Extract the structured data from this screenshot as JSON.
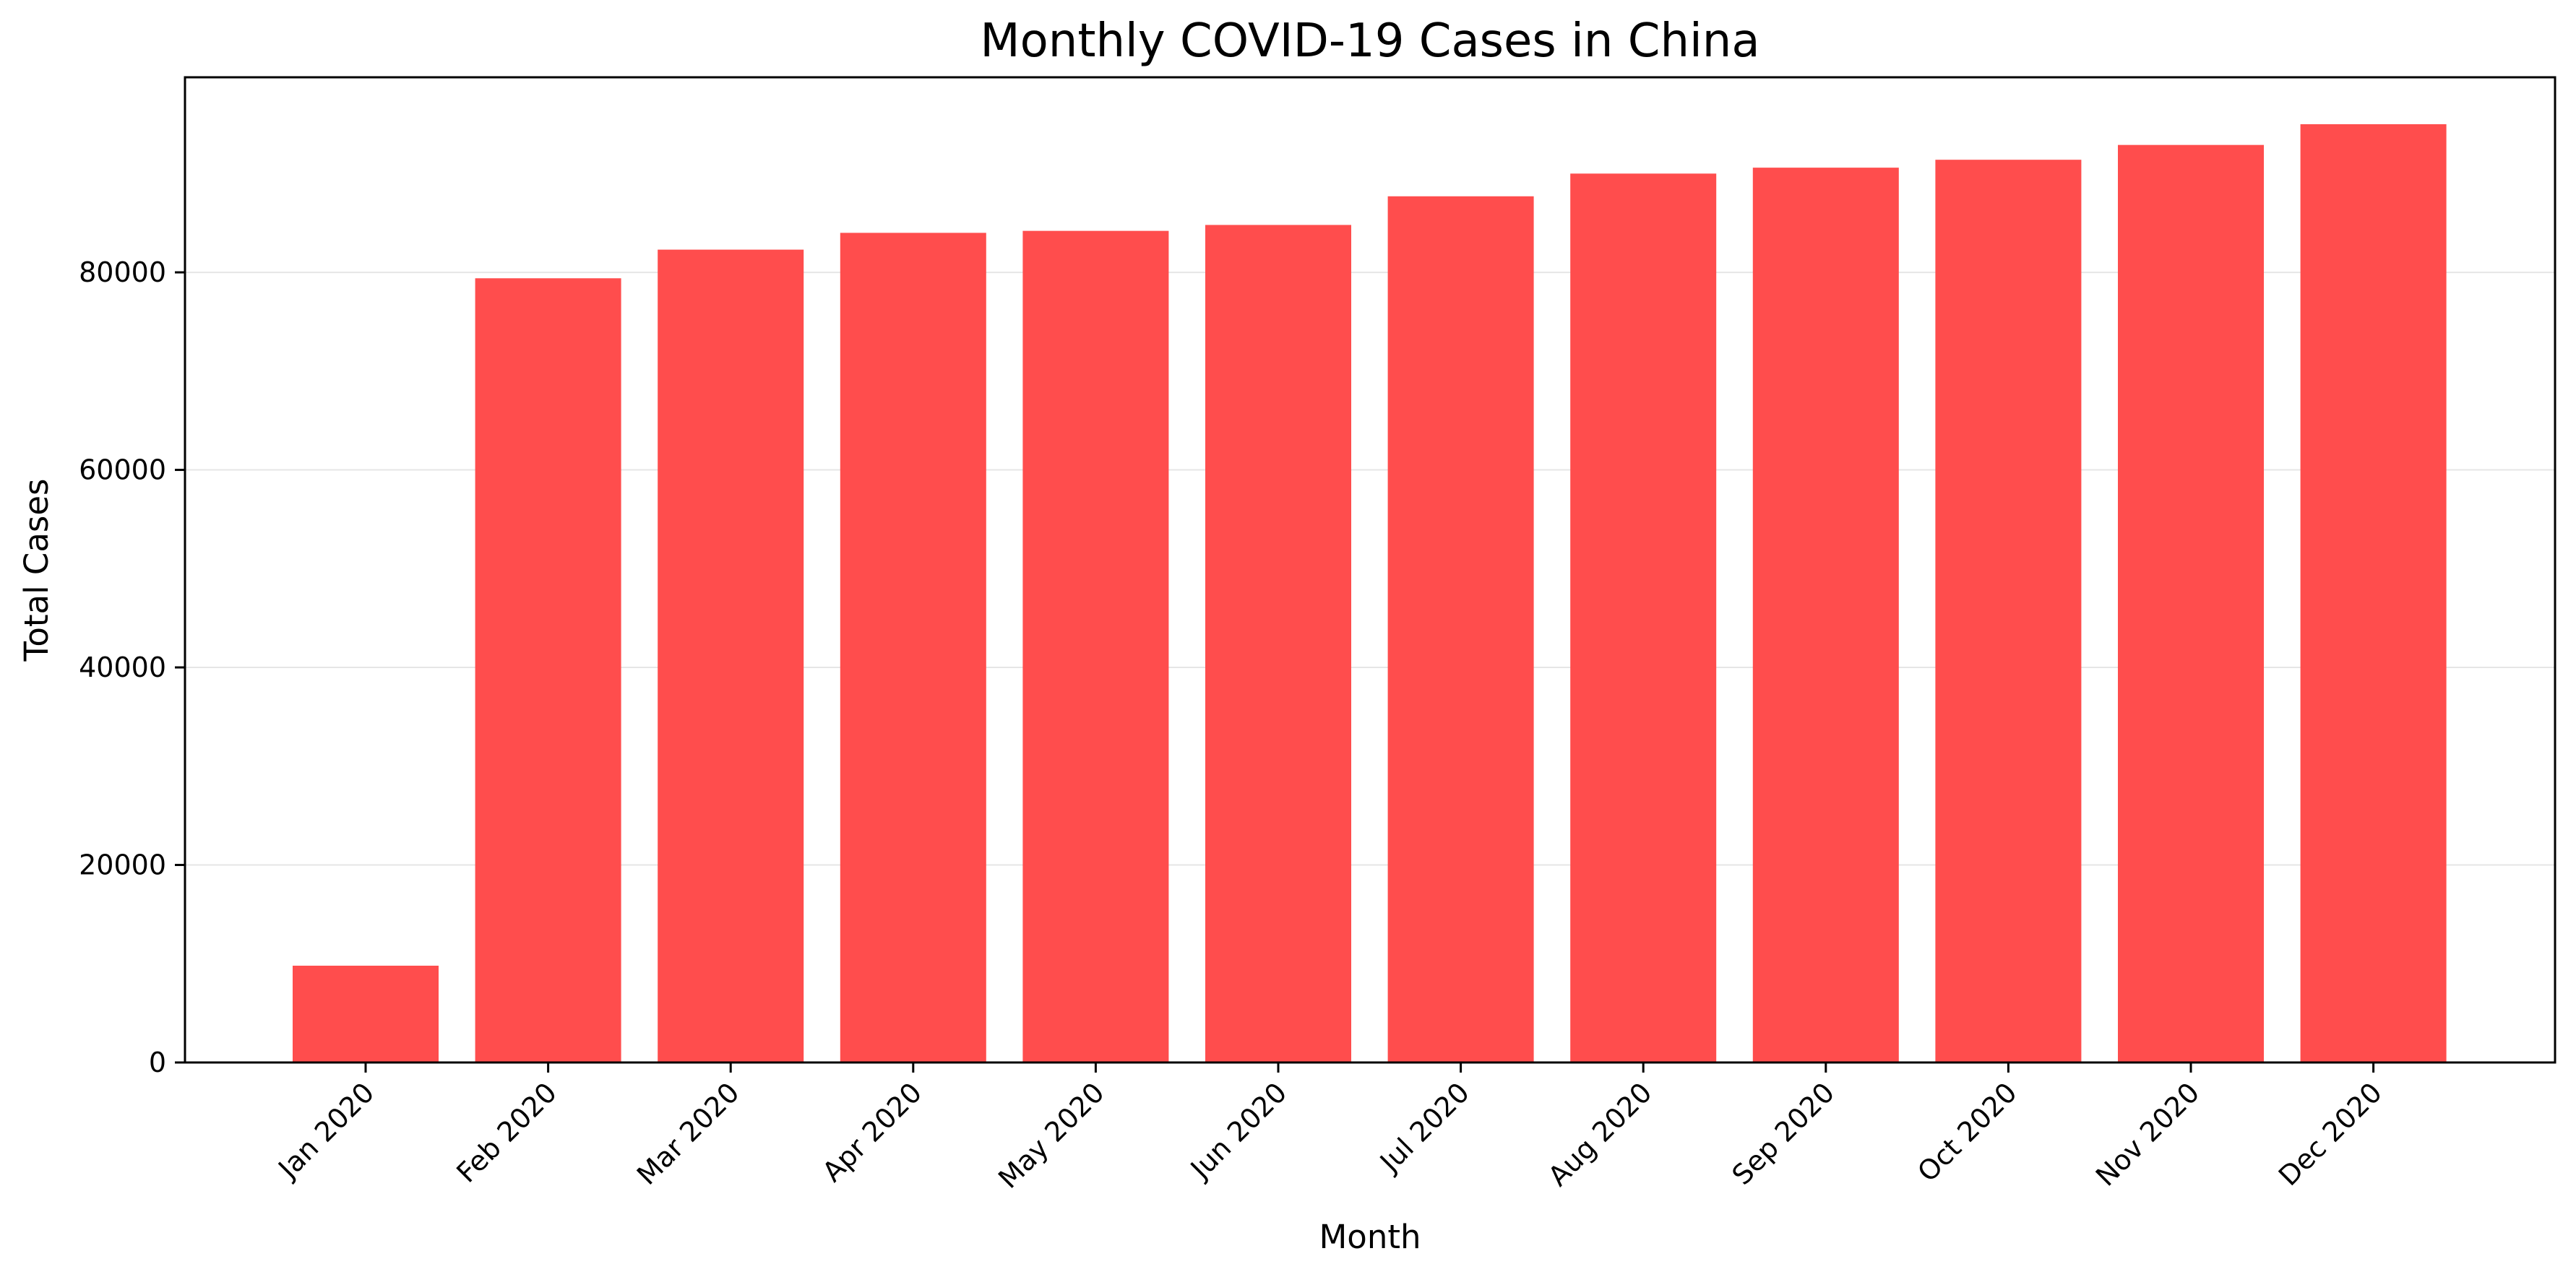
{
  "chart_data": {
    "type": "bar",
    "title": "Monthly COVID-19 Cases in China",
    "xlabel": "Month",
    "ylabel": "Total Cases",
    "categories": [
      "Jan 2020",
      "Feb 2020",
      "Mar 2020",
      "Apr 2020",
      "May 2020",
      "Jun 2020",
      "Jul 2020",
      "Aug 2020",
      "Sep 2020",
      "Oct 2020",
      "Nov 2020",
      "Dec 2020"
    ],
    "values": [
      9800,
      79400,
      82300,
      84000,
      84200,
      84800,
      87700,
      90000,
      90600,
      91400,
      92900,
      95000
    ],
    "ylim": [
      0,
      99750
    ],
    "yticks": [
      0,
      20000,
      40000,
      60000,
      80000
    ],
    "ytick_labels": [
      "0",
      "20000",
      "40000",
      "60000",
      "80000"
    ],
    "grid": "horizontal",
    "bar_color": "#ff4d4d"
  }
}
